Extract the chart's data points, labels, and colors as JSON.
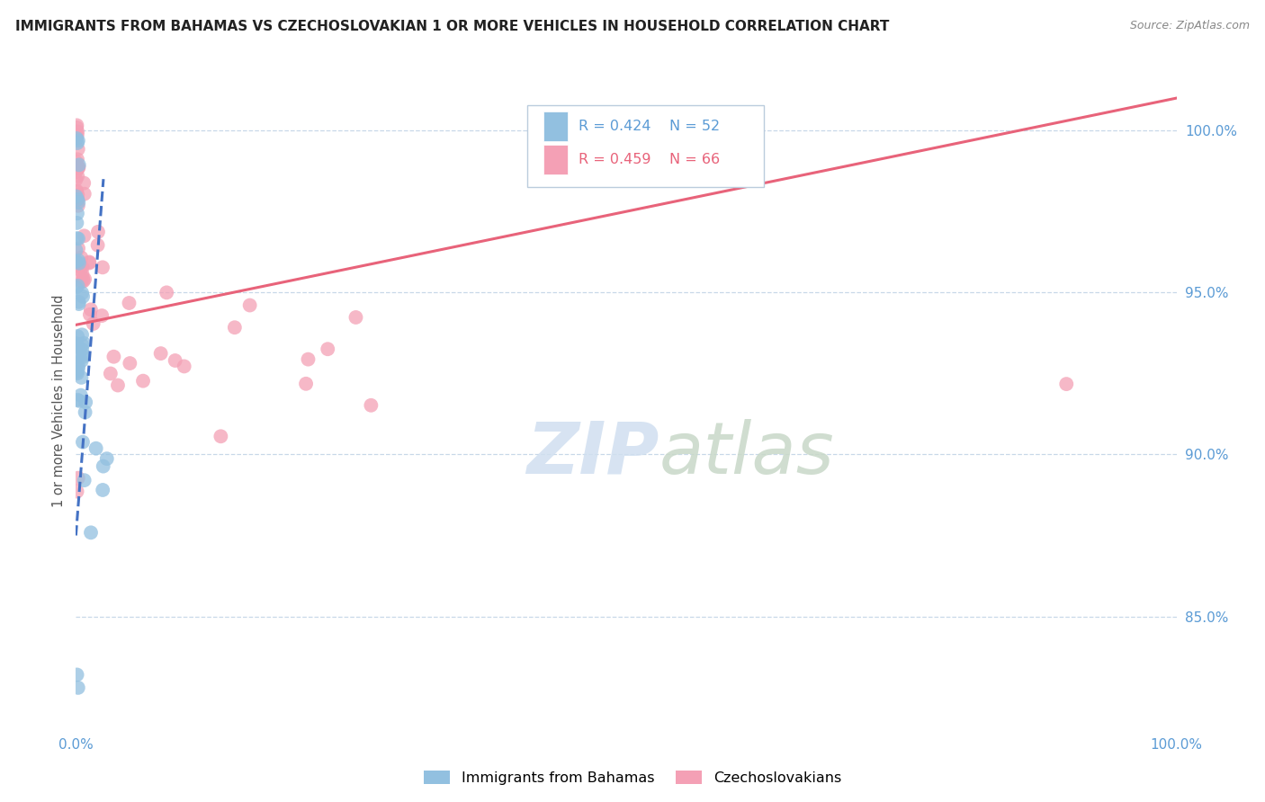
{
  "title": "IMMIGRANTS FROM BAHAMAS VS CZECHOSLOVAKIAN 1 OR MORE VEHICLES IN HOUSEHOLD CORRELATION CHART",
  "source": "Source: ZipAtlas.com",
  "ylabel": "1 or more Vehicles in Household",
  "y_ticks": [
    0.85,
    0.9,
    0.95,
    1.0
  ],
  "y_tick_labels": [
    "85.0%",
    "90.0%",
    "95.0%",
    "100.0%"
  ],
  "x_range": [
    0.0,
    1.0
  ],
  "y_range": [
    0.815,
    1.018
  ],
  "R_blue": 0.424,
  "N_blue": 52,
  "R_pink": 0.459,
  "N_pink": 66,
  "legend_label_blue": "Immigrants from Bahamas",
  "legend_label_pink": "Czechoslovakians",
  "watermark_zip": "ZIP",
  "watermark_atlas": "atlas",
  "blue_color": "#92C0E0",
  "pink_color": "#F4A0B5",
  "blue_line_color": "#4472C4",
  "pink_line_color": "#E8637A",
  "title_color": "#222222",
  "source_color": "#888888",
  "tick_color": "#5B9BD5",
  "grid_color": "#C8D8E8",
  "ylabel_color": "#555555"
}
